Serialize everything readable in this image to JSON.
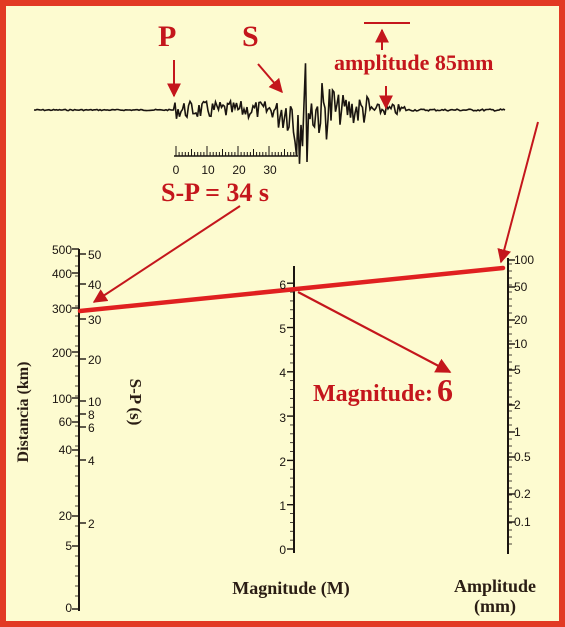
{
  "seismogram": {
    "p_label": "P",
    "s_label": "S",
    "amplitude_label": "amplitude 85mm",
    "scale_ticks": [
      "0",
      "10",
      "20",
      "30"
    ],
    "sp_label": "S-P = 34 s"
  },
  "nomogram": {
    "distance_axis": {
      "title": "Distancia (km)",
      "ticks": [
        "500",
        "400",
        "300",
        "200",
        "100",
        "60",
        "40",
        "20",
        "5",
        "0"
      ]
    },
    "sp_axis": {
      "title": "S-P (s)",
      "ticks": [
        "50",
        "40",
        "30",
        "20",
        "10",
        "8",
        "6",
        "4",
        "2"
      ]
    },
    "magnitude_axis": {
      "title": "Magnitude (M)",
      "ticks": [
        "6",
        "5",
        "4",
        "3",
        "2",
        "1",
        "0"
      ]
    },
    "amplitude_axis": {
      "title_line1": "Amplitude",
      "title_line2": "(mm)",
      "ticks": [
        "100",
        "50",
        "20",
        "10",
        "5",
        "2",
        "1",
        "0.5",
        "0.2",
        "0.1"
      ]
    },
    "result_label": "Magnitude:",
    "result_value": "6"
  },
  "colors": {
    "background": "#fdfbd0",
    "border": "#e23a24",
    "accent_red": "#c4161c",
    "ink": "#2a1d14"
  }
}
